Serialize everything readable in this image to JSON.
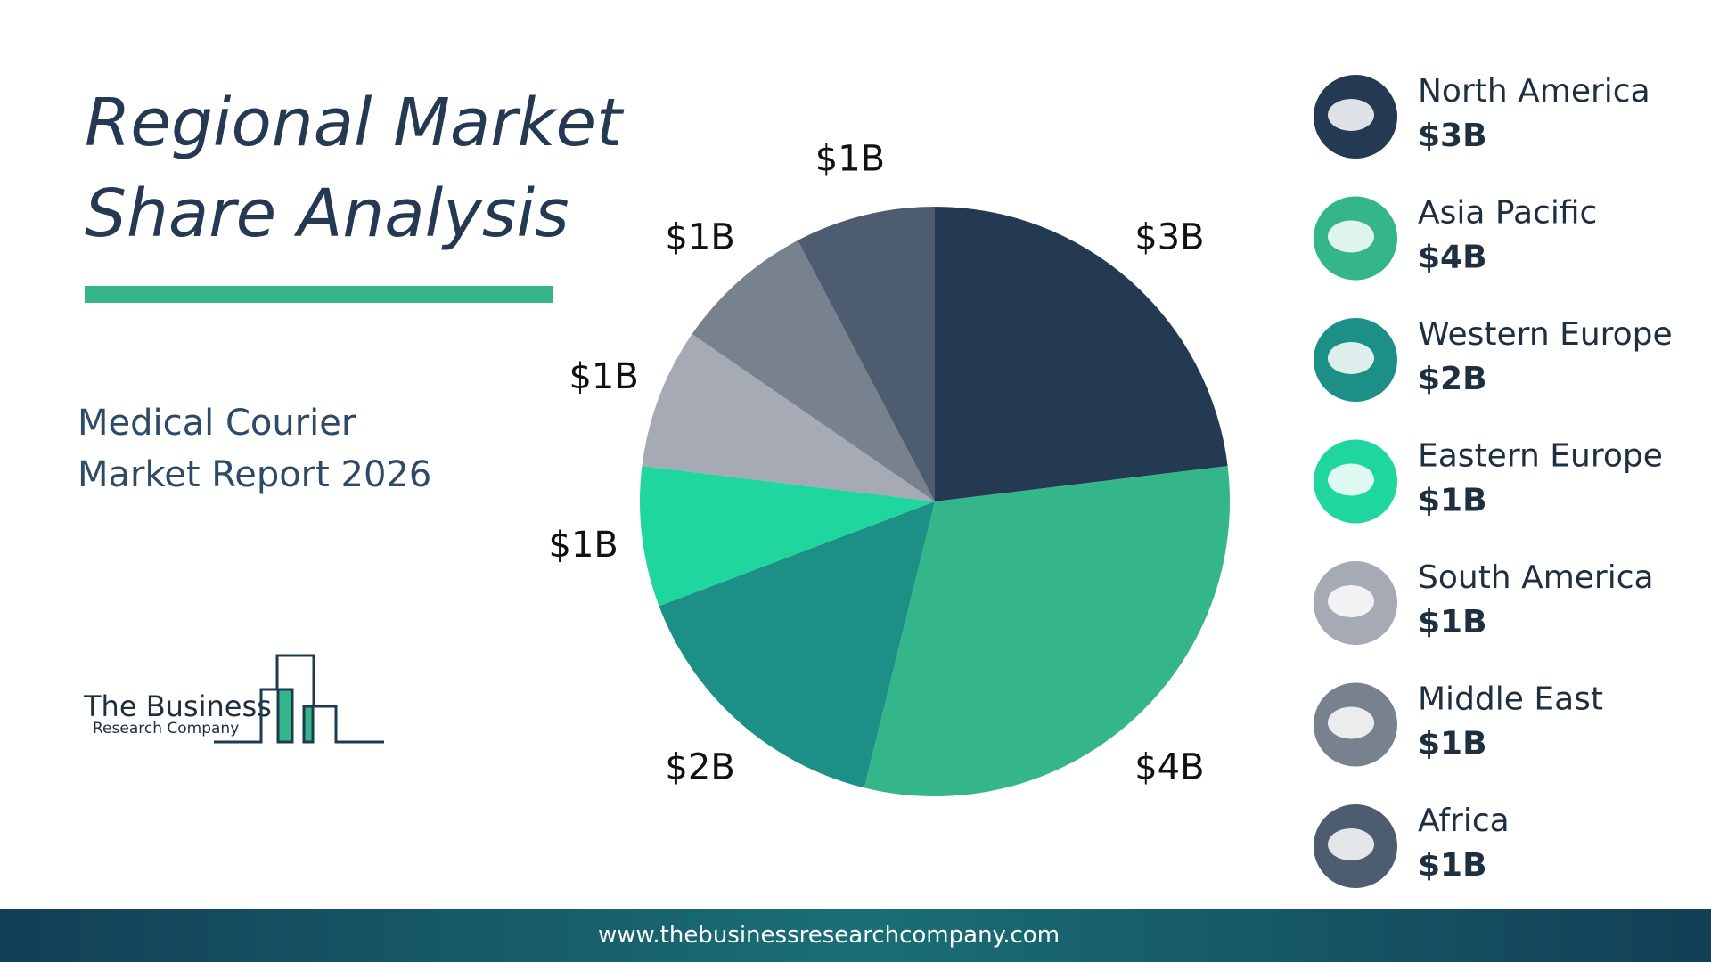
{
  "header": {
    "title_lines": [
      "Regional Market",
      "Share Analysis"
    ],
    "subtitle_lines": [
      "Medical Courier",
      "Market Report 2026"
    ]
  },
  "logo": {
    "line1": "The Business",
    "line2": "Research Company"
  },
  "footer": {
    "url": "www.thebusinessresearchcompany.com"
  },
  "chart_data": {
    "type": "pie",
    "categories": [
      "North America",
      "Asia Pacific",
      "Western Europe",
      "Eastern Europe",
      "South America",
      "Middle East",
      "Africa"
    ],
    "values": [
      3,
      4,
      2,
      1,
      1,
      1,
      1
    ],
    "value_labels": [
      "$3B",
      "$4B",
      "$2B",
      "$1B",
      "$1B",
      "$1B",
      "$1B"
    ],
    "colors": [
      "#243a52",
      "#34b58a",
      "#1c9087",
      "#1fd79e",
      "#a5aab5",
      "#78828f",
      "#4d5c6e"
    ]
  }
}
